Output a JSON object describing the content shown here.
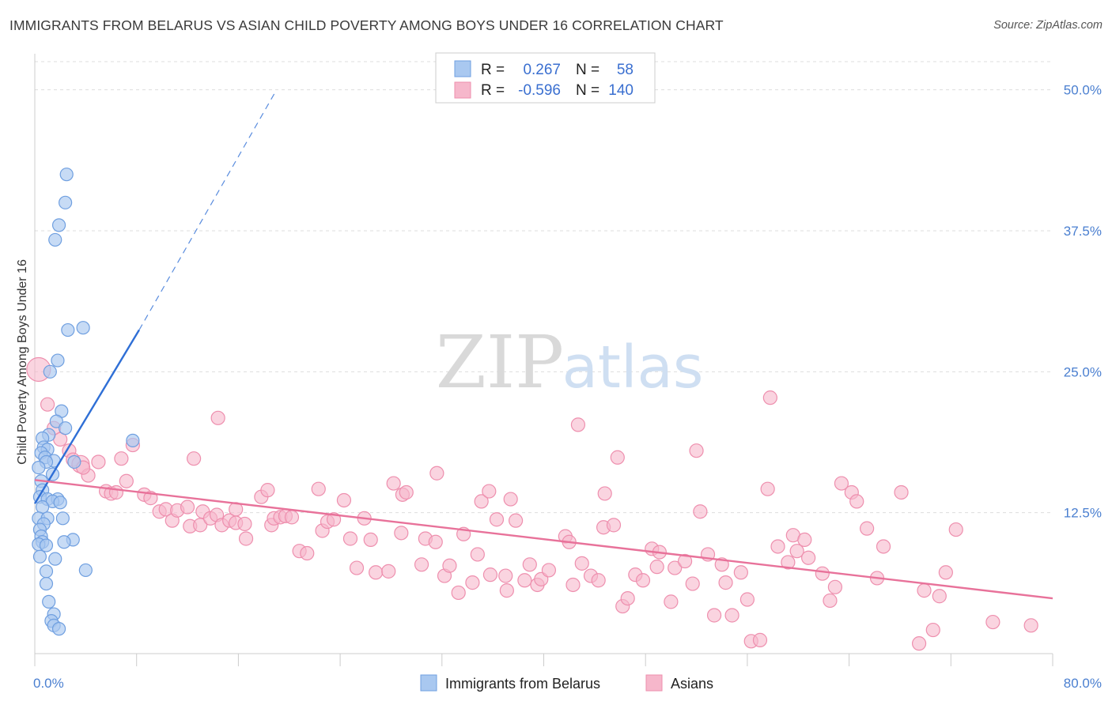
{
  "title": "IMMIGRANTS FROM BELARUS VS ASIAN CHILD POVERTY AMONG BOYS UNDER 16 CORRELATION CHART",
  "source": "Source: ZipAtlas.com",
  "watermark": {
    "zip": "ZIP",
    "atlas": "atlas"
  },
  "colors": {
    "blue_fill": "#a9c8f0",
    "blue_stroke": "#6f9fe0",
    "blue_line": "#2f6fd6",
    "pink_fill": "#f6b7cb",
    "pink_stroke": "#ee8fae",
    "pink_line": "#e8729a",
    "grid": "#dddddd",
    "axis_label": "#4a7fd0"
  },
  "legend": {
    "rows": [
      {
        "series": "Immigrants from Belarus",
        "r_label": "R =",
        "r_value": "0.267",
        "n_label": "N =",
        "n_value": "58"
      },
      {
        "series": "Asians",
        "r_label": "R =",
        "r_value": "-0.596",
        "n_label": "N =",
        "n_value": "140"
      }
    ]
  },
  "chart_data": {
    "type": "scatter",
    "title": "IMMIGRANTS FROM BELARUS VS ASIAN CHILD POVERTY AMONG BOYS UNDER 16 CORRELATION CHART",
    "xlabel": "",
    "ylabel": "Child Poverty Among Boys Under 16",
    "xlim": [
      0,
      80
    ],
    "ylim": [
      0,
      52.5
    ],
    "x_tick_labels": [
      "0.0%",
      "80.0%"
    ],
    "y_ticks": [
      12.5,
      25.0,
      37.5,
      50.0
    ],
    "y_tick_labels": [
      "12.5%",
      "25.0%",
      "37.5%",
      "50.0%"
    ],
    "grid": true,
    "legend_position": "top-center",
    "series": [
      {
        "name": "Immigrants from Belarus",
        "color": "#a9c8f0",
        "r": 0.267,
        "n": 58,
        "trend": {
          "x1": 0.0,
          "y1": 13.3,
          "x2": 8.2,
          "y2": 28.7,
          "dashed_to": {
            "x": 19.0,
            "y": 50.0
          }
        },
        "points": [
          [
            2.5,
            42.5
          ],
          [
            2.4,
            40.0
          ],
          [
            1.9,
            38.0
          ],
          [
            1.6,
            36.7
          ],
          [
            2.6,
            28.7
          ],
          [
            3.8,
            28.9
          ],
          [
            1.8,
            26.0
          ],
          [
            1.2,
            25.0
          ],
          [
            2.1,
            21.5
          ],
          [
            1.7,
            20.6
          ],
          [
            2.4,
            20.0
          ],
          [
            1.1,
            19.4
          ],
          [
            0.6,
            19.1
          ],
          [
            7.7,
            18.9
          ],
          [
            0.7,
            18.3
          ],
          [
            1.0,
            18.1
          ],
          [
            0.5,
            17.8
          ],
          [
            0.8,
            17.4
          ],
          [
            1.5,
            17.1
          ],
          [
            0.9,
            17.0
          ],
          [
            3.1,
            17.0
          ],
          [
            0.3,
            16.5
          ],
          [
            1.4,
            15.9
          ],
          [
            0.5,
            15.3
          ],
          [
            0.6,
            14.5
          ],
          [
            0.4,
            13.9
          ],
          [
            1.0,
            13.7
          ],
          [
            1.8,
            13.7
          ],
          [
            1.4,
            13.5
          ],
          [
            2.0,
            13.4
          ],
          [
            0.6,
            13.0
          ],
          [
            0.3,
            12.0
          ],
          [
            1.0,
            12.0
          ],
          [
            2.2,
            12.0
          ],
          [
            0.7,
            11.5
          ],
          [
            0.4,
            11.0
          ],
          [
            0.5,
            10.4
          ],
          [
            3.0,
            10.1
          ],
          [
            0.6,
            9.9
          ],
          [
            0.3,
            9.7
          ],
          [
            0.9,
            9.6
          ],
          [
            2.3,
            9.9
          ],
          [
            0.4,
            8.6
          ],
          [
            1.6,
            8.4
          ],
          [
            4.0,
            7.4
          ],
          [
            0.9,
            7.3
          ],
          [
            0.9,
            6.2
          ],
          [
            1.1,
            4.6
          ],
          [
            1.5,
            3.5
          ],
          [
            1.3,
            2.9
          ],
          [
            1.5,
            2.5
          ],
          [
            1.9,
            2.2
          ]
        ]
      },
      {
        "name": "Asians",
        "color": "#f6b7cb",
        "r": -0.596,
        "n": 140,
        "trend": {
          "x1": 0.0,
          "y1": 15.4,
          "x2": 80.0,
          "y2": 4.9
        },
        "points": [
          [
            0.3,
            25.2
          ],
          [
            1.0,
            22.1
          ],
          [
            1.5,
            20.0
          ],
          [
            2.0,
            19.0
          ],
          [
            2.7,
            18.0
          ],
          [
            3.0,
            17.2
          ],
          [
            3.6,
            16.8
          ],
          [
            4.2,
            15.8
          ],
          [
            3.8,
            16.5
          ],
          [
            5.0,
            17.0
          ],
          [
            6.8,
            17.3
          ],
          [
            7.7,
            18.5
          ],
          [
            7.2,
            15.3
          ],
          [
            5.6,
            14.4
          ],
          [
            6.0,
            14.2
          ],
          [
            6.4,
            14.3
          ],
          [
            8.6,
            14.1
          ],
          [
            9.1,
            13.8
          ],
          [
            9.8,
            12.6
          ],
          [
            10.3,
            12.8
          ],
          [
            10.8,
            11.8
          ],
          [
            11.2,
            12.7
          ],
          [
            12.0,
            13.0
          ],
          [
            12.2,
            11.3
          ],
          [
            12.5,
            17.3
          ],
          [
            13.0,
            11.4
          ],
          [
            13.2,
            12.6
          ],
          [
            13.8,
            12.0
          ],
          [
            14.3,
            12.3
          ],
          [
            14.7,
            11.4
          ],
          [
            14.4,
            20.9
          ],
          [
            15.3,
            11.8
          ],
          [
            15.8,
            11.6
          ],
          [
            15.8,
            12.8
          ],
          [
            16.5,
            11.5
          ],
          [
            16.6,
            10.2
          ],
          [
            17.8,
            13.9
          ],
          [
            18.3,
            14.5
          ],
          [
            18.6,
            11.4
          ],
          [
            18.8,
            12.0
          ],
          [
            19.3,
            12.1
          ],
          [
            19.7,
            12.2
          ],
          [
            20.2,
            12.1
          ],
          [
            20.8,
            9.1
          ],
          [
            21.4,
            8.9
          ],
          [
            22.3,
            14.6
          ],
          [
            22.6,
            10.9
          ],
          [
            23.0,
            11.7
          ],
          [
            23.5,
            11.9
          ],
          [
            24.3,
            13.6
          ],
          [
            24.8,
            10.2
          ],
          [
            25.3,
            7.6
          ],
          [
            25.9,
            12.0
          ],
          [
            26.4,
            10.1
          ],
          [
            26.8,
            7.2
          ],
          [
            27.8,
            7.3
          ],
          [
            28.2,
            15.1
          ],
          [
            28.9,
            14.1
          ],
          [
            29.2,
            14.3
          ],
          [
            28.8,
            10.7
          ],
          [
            30.4,
            7.9
          ],
          [
            30.7,
            10.2
          ],
          [
            31.5,
            9.9
          ],
          [
            31.6,
            16.0
          ],
          [
            32.2,
            6.9
          ],
          [
            32.6,
            7.8
          ],
          [
            33.3,
            5.4
          ],
          [
            33.7,
            10.6
          ],
          [
            34.4,
            6.3
          ],
          [
            34.8,
            8.8
          ],
          [
            35.1,
            13.5
          ],
          [
            35.7,
            14.4
          ],
          [
            35.8,
            7.0
          ],
          [
            36.3,
            11.9
          ],
          [
            37.1,
            5.6
          ],
          [
            37.0,
            6.9
          ],
          [
            37.4,
            13.7
          ],
          [
            37.8,
            11.8
          ],
          [
            38.5,
            6.5
          ],
          [
            38.9,
            7.9
          ],
          [
            39.5,
            6.1
          ],
          [
            39.8,
            6.6
          ],
          [
            40.4,
            7.4
          ],
          [
            41.7,
            10.4
          ],
          [
            42.0,
            9.9
          ],
          [
            42.3,
            6.1
          ],
          [
            42.7,
            20.3
          ],
          [
            43.0,
            8.0
          ],
          [
            43.7,
            6.9
          ],
          [
            44.3,
            6.5
          ],
          [
            44.7,
            11.2
          ],
          [
            44.8,
            14.2
          ],
          [
            45.5,
            11.4
          ],
          [
            45.8,
            17.4
          ],
          [
            46.2,
            4.2
          ],
          [
            46.6,
            4.9
          ],
          [
            47.2,
            7.0
          ],
          [
            47.8,
            6.5
          ],
          [
            48.5,
            9.3
          ],
          [
            48.9,
            7.7
          ],
          [
            49.1,
            9.0
          ],
          [
            50.0,
            4.6
          ],
          [
            50.3,
            7.6
          ],
          [
            51.1,
            8.2
          ],
          [
            51.7,
            6.2
          ],
          [
            52.0,
            18.0
          ],
          [
            52.3,
            12.6
          ],
          [
            52.9,
            8.8
          ],
          [
            53.4,
            3.4
          ],
          [
            54.0,
            7.9
          ],
          [
            54.3,
            6.3
          ],
          [
            54.8,
            3.4
          ],
          [
            55.5,
            7.2
          ],
          [
            56.0,
            4.8
          ],
          [
            56.3,
            1.1
          ],
          [
            57.0,
            1.2
          ],
          [
            57.6,
            14.6
          ],
          [
            57.8,
            22.7
          ],
          [
            58.4,
            9.5
          ],
          [
            59.2,
            8.1
          ],
          [
            59.6,
            10.5
          ],
          [
            59.9,
            9.1
          ],
          [
            60.5,
            10.1
          ],
          [
            60.8,
            8.5
          ],
          [
            61.9,
            7.1
          ],
          [
            62.5,
            4.7
          ],
          [
            62.9,
            5.9
          ],
          [
            63.4,
            15.1
          ],
          [
            64.2,
            14.3
          ],
          [
            64.6,
            13.5
          ],
          [
            65.4,
            11.1
          ],
          [
            66.2,
            6.7
          ],
          [
            66.7,
            9.5
          ],
          [
            68.1,
            14.3
          ],
          [
            69.5,
            0.9
          ],
          [
            69.9,
            5.6
          ],
          [
            70.6,
            2.1
          ],
          [
            71.1,
            5.1
          ],
          [
            71.6,
            7.2
          ],
          [
            72.4,
            11.0
          ],
          [
            75.3,
            2.8
          ],
          [
            78.3,
            2.5
          ]
        ]
      }
    ]
  }
}
